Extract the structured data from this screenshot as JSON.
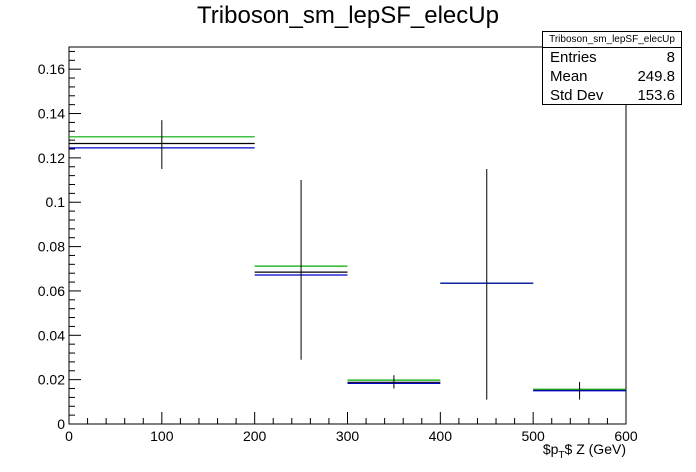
{
  "chart_data": {
    "type": "histogram",
    "title": "Triboson_sm_lepSF_elecUp",
    "xlabel": "$p_{T}$ Z (GeV)",
    "ylabel": "",
    "xlim": [
      0,
      600
    ],
    "ylim": [
      0,
      0.17
    ],
    "x_ticks": [
      0,
      100,
      200,
      300,
      400,
      500,
      600
    ],
    "y_ticks": [
      0,
      0.02,
      0.04,
      0.06,
      0.08,
      0.1,
      0.12,
      0.14,
      0.16
    ],
    "grid": false,
    "bins": [
      {
        "xlow": 0,
        "xhigh": 200,
        "center": 100,
        "value": 0.126,
        "err_low": 0.115,
        "err_high": 0.137
      },
      {
        "xlow": 200,
        "xhigh": 300,
        "center": 250,
        "value": 0.069,
        "err_low": 0.029,
        "err_high": 0.11
      },
      {
        "xlow": 300,
        "xhigh": 400,
        "center": 350,
        "value": 0.019,
        "err_low": 0.016,
        "err_high": 0.022
      },
      {
        "xlow": 400,
        "xhigh": 500,
        "center": 450,
        "value": 0.063,
        "err_low": 0.011,
        "err_high": 0.115
      },
      {
        "xlow": 500,
        "xhigh": 600,
        "center": 550,
        "value": 0.015,
        "err_low": 0.011,
        "err_high": 0.019
      }
    ],
    "series": [
      {
        "color": "#000000",
        "values": [
          0.1265,
          0.0685,
          0.0188,
          0.0635,
          0.0152
        ]
      },
      {
        "color": "#00aa00",
        "values": [
          0.1295,
          0.0712,
          0.0198,
          0.0635,
          0.0157
        ]
      },
      {
        "color": "#0000cc",
        "values": [
          0.1245,
          0.0672,
          0.0183,
          0.0635,
          0.015
        ]
      }
    ],
    "stats": {
      "name": "Triboson_sm_lepSF_elecUp",
      "entries_label": "Entries",
      "entries": "8",
      "mean_label": "Mean",
      "mean": "249.8",
      "stddev_label": "Std Dev",
      "stddev": "153.6"
    }
  }
}
